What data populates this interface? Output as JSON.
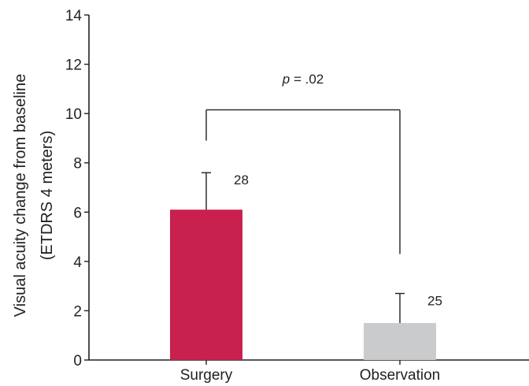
{
  "chart_data": {
    "type": "bar",
    "categories": [
      "Surgery",
      "Observation"
    ],
    "values": [
      6.1,
      1.5
    ],
    "error_upper": [
      7.6,
      2.7
    ],
    "n_labels": [
      "28",
      "25"
    ],
    "ylabel_line1": "Visual acuity change from baseline",
    "ylabel_line2": "(ETDRS 4 meters)",
    "ylim": [
      0,
      14
    ],
    "yticks": [
      0,
      2,
      4,
      6,
      8,
      10,
      12,
      14
    ],
    "ytick_labels": [
      "0",
      "2",
      "4",
      "6",
      "8",
      "10",
      "12",
      "14"
    ],
    "bar_colors": [
      "#c8204f",
      "#c9cbcc"
    ],
    "significance": {
      "italic": "p",
      "rest": " = .02",
      "bracket_y": 10.15,
      "left_drop_y": 8.9,
      "right_drop_y": 4.3
    },
    "grid": false,
    "legend": "none"
  }
}
